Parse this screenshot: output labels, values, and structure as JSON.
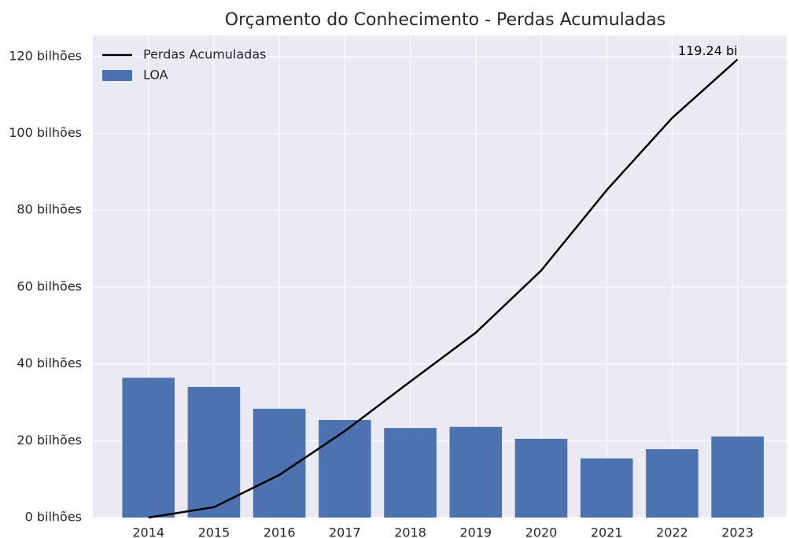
{
  "chart_data": {
    "type": "bar",
    "title": "Orçamento do Conhecimento - Perdas Acumuladas",
    "x": [
      2014,
      2015,
      2016,
      2017,
      2018,
      2019,
      2020,
      2021,
      2022,
      2023
    ],
    "series": [
      {
        "name": "Perdas Acumuladas",
        "type": "line",
        "color": "#000000",
        "values": [
          0,
          2.7,
          11.1,
          22.5,
          35.4,
          48.1,
          64.3,
          85.2,
          104.0,
          119.24
        ]
      },
      {
        "name": "LOA",
        "type": "bar",
        "color": "#4c72b0",
        "values": [
          36.4,
          34.0,
          28.3,
          25.4,
          23.3,
          23.6,
          20.5,
          15.4,
          17.8,
          21.1
        ]
      }
    ],
    "annotations": [
      {
        "text": "119.24 bi"
      }
    ],
    "xlim": [
      2013.15,
      2023.75
    ],
    "xticks": [
      2014,
      2015,
      2016,
      2017,
      2018,
      2019,
      2020,
      2021,
      2022,
      2023
    ],
    "ylim": [
      0,
      125.5
    ],
    "yticks": [
      {
        "value": 0,
        "label": "0 bilhões"
      },
      {
        "value": 20,
        "label": "20 bilhões"
      },
      {
        "value": 40,
        "label": "40 bilhões"
      },
      {
        "value": 60,
        "label": "60 bilhões"
      },
      {
        "value": 80,
        "label": "80 bilhões"
      },
      {
        "value": 100,
        "label": "100 bilhões"
      },
      {
        "value": 120,
        "label": "120 bilhões"
      }
    ],
    "grid": true,
    "legend": "upper left"
  }
}
